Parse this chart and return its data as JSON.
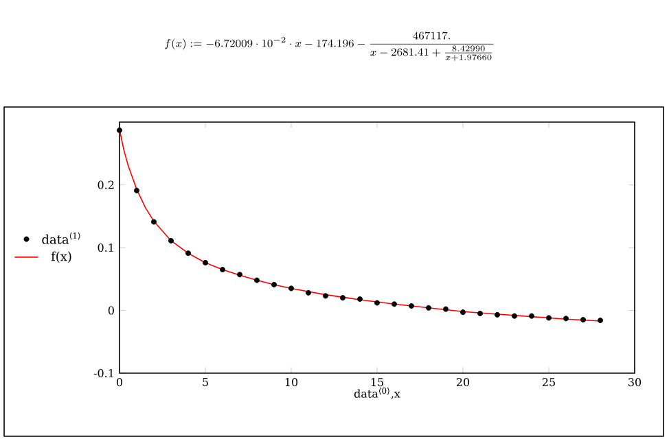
{
  "chart_data": {
    "type": "scatter",
    "title": "f(x) := -6.72009\\cdot 10^{-2}\\cdot x - 174.196 - \\frac{467117.}{x - 2681.41 + \\frac{8.42990}{x + 1.97660}}",
    "xlabel": "data$^{⟨0⟩}$,x",
    "x": [
      0,
      1,
      2,
      3,
      4,
      5,
      6,
      7,
      8,
      9,
      10,
      11,
      12,
      13,
      14,
      15,
      16,
      17,
      18,
      19,
      20,
      21,
      22,
      23,
      24,
      25,
      26,
      27,
      28
    ],
    "series": [
      {
        "name": "data$^{⟨1⟩}$",
        "type": "scatter",
        "marker": "circle",
        "color": "#000000",
        "values": [
          0.287,
          0.191,
          0.141,
          0.111,
          0.091,
          0.076,
          0.065,
          0.057,
          0.048,
          0.041,
          0.035,
          0.028,
          0.023,
          0.02,
          0.018,
          0.012,
          0.01,
          0.007,
          0.004,
          0.002,
          -0.003,
          -0.005,
          -0.007,
          -0.009,
          -0.009,
          -0.012,
          -0.013,
          -0.015,
          -0.016
        ]
      },
      {
        "name": "f(x)",
        "type": "line",
        "marker": "none",
        "color": "#ff0000",
        "x": [
          0,
          0.25,
          0.5,
          1,
          1.5,
          2,
          3,
          4,
          5,
          6,
          7,
          8,
          9,
          10,
          12,
          14,
          16,
          18,
          20,
          22,
          24,
          26,
          28
        ],
        "values": [
          0.288,
          0.256,
          0.231,
          0.193,
          0.164,
          0.142,
          0.111,
          0.091,
          0.076,
          0.065,
          0.056,
          0.048,
          0.041,
          0.035,
          0.025,
          0.017,
          0.01,
          0.004,
          -0.002,
          -0.006,
          -0.01,
          -0.014,
          -0.017
        ]
      }
    ],
    "xlim": [
      0,
      30
    ],
    "xticks": [
      0,
      5,
      10,
      15,
      20,
      25,
      30
    ],
    "ylim": [
      -0.1,
      0.3
    ],
    "yticks": [
      -0.1,
      0,
      0.1,
      0.2
    ],
    "grid": false,
    "legend": "left"
  }
}
